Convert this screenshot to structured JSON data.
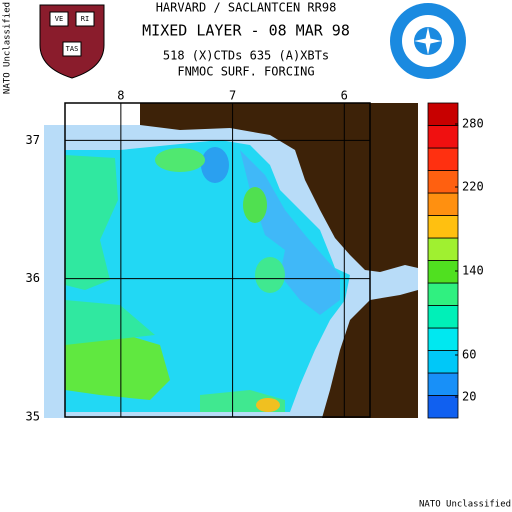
{
  "chart_data": {
    "type": "map",
    "header": "HARVARD / SACLANTCEN RR98",
    "title": "MIXED LAYER - 08 MAR 98",
    "subtitle": "518 (X)CTDs   635 (A)XBTs",
    "forcing": "FNMOC SURF. FORCING",
    "classification_left": "NATO Unclassified",
    "classification_bottom": "NATO Unclassified",
    "logo_texts": [
      "VE",
      "RI",
      "TAS"
    ],
    "xlim": [
      8.5,
      5.77
    ],
    "xticks": [
      8,
      7,
      6
    ],
    "ylim": [
      35,
      37.27
    ],
    "yticks": [
      35,
      36,
      37
    ],
    "grid": true,
    "colorbar": {
      "lim": [
        0,
        300
      ],
      "ticks": [
        20,
        60,
        140,
        220,
        280
      ],
      "colors": [
        "#1060f0",
        "#1890f8",
        "#00c8f8",
        "#00e8f0",
        "#00f0b8",
        "#30f080",
        "#50e020",
        "#a0f030",
        "#ffc010",
        "#ff9010",
        "#ff6010",
        "#ff3010",
        "#f01010",
        "#c80000"
      ]
    }
  }
}
